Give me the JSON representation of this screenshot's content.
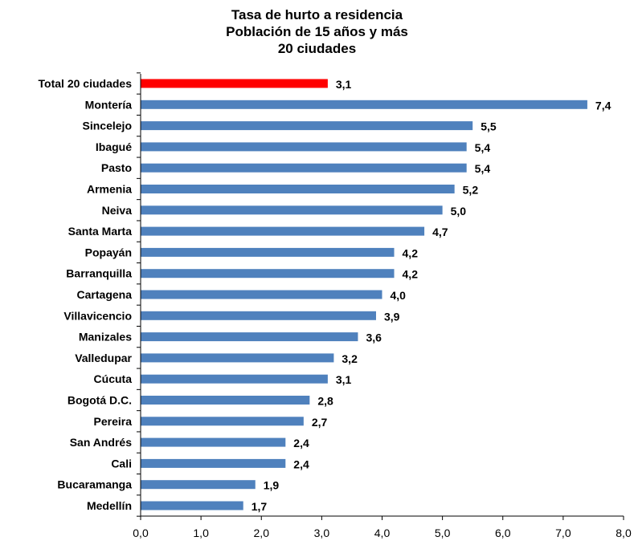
{
  "chart_data": {
    "type": "bar",
    "orientation": "horizontal",
    "title_lines": [
      "Tasa de hurto a residencia",
      "Población de 15 años y más",
      "20 ciudades"
    ],
    "categories": [
      "Total 20 ciudades",
      "Montería",
      "Sincelejo",
      "Ibagué",
      "Pasto",
      "Armenia",
      "Neiva",
      "Santa Marta",
      "Popayán",
      "Barranquilla",
      "Cartagena",
      "Villavicencio",
      "Manizales",
      "Valledupar",
      "Cúcuta",
      "Bogotá D.C.",
      "Pereira",
      "San Andrés",
      "Cali",
      "Bucaramanga",
      "Medellín"
    ],
    "values": [
      3.1,
      7.4,
      5.5,
      5.4,
      5.4,
      5.2,
      5.0,
      4.7,
      4.2,
      4.2,
      4.0,
      3.9,
      3.6,
      3.2,
      3.1,
      2.8,
      2.7,
      2.4,
      2.4,
      1.9,
      1.7
    ],
    "data_labels": [
      "3,1",
      "7,4",
      "5,5",
      "5,4",
      "5,4",
      "5,2",
      "5,0",
      "4,7",
      "4,2",
      "4,2",
      "4,0",
      "3,9",
      "3,6",
      "3,2",
      "3,1",
      "2,8",
      "2,7",
      "2,4",
      "2,4",
      "1,9",
      "1,7"
    ],
    "x_ticks": [
      "0,0",
      "1,0",
      "2,0",
      "3,0",
      "4,0",
      "5,0",
      "6,0",
      "7,0",
      "8,0"
    ],
    "xlim": [
      0,
      8
    ],
    "grid": false,
    "legend": "none",
    "colors": {
      "bar": "#4F81BD",
      "highlight": "#FF0000",
      "axis": "#000000"
    },
    "highlight_category": "Total 20 ciudades"
  }
}
